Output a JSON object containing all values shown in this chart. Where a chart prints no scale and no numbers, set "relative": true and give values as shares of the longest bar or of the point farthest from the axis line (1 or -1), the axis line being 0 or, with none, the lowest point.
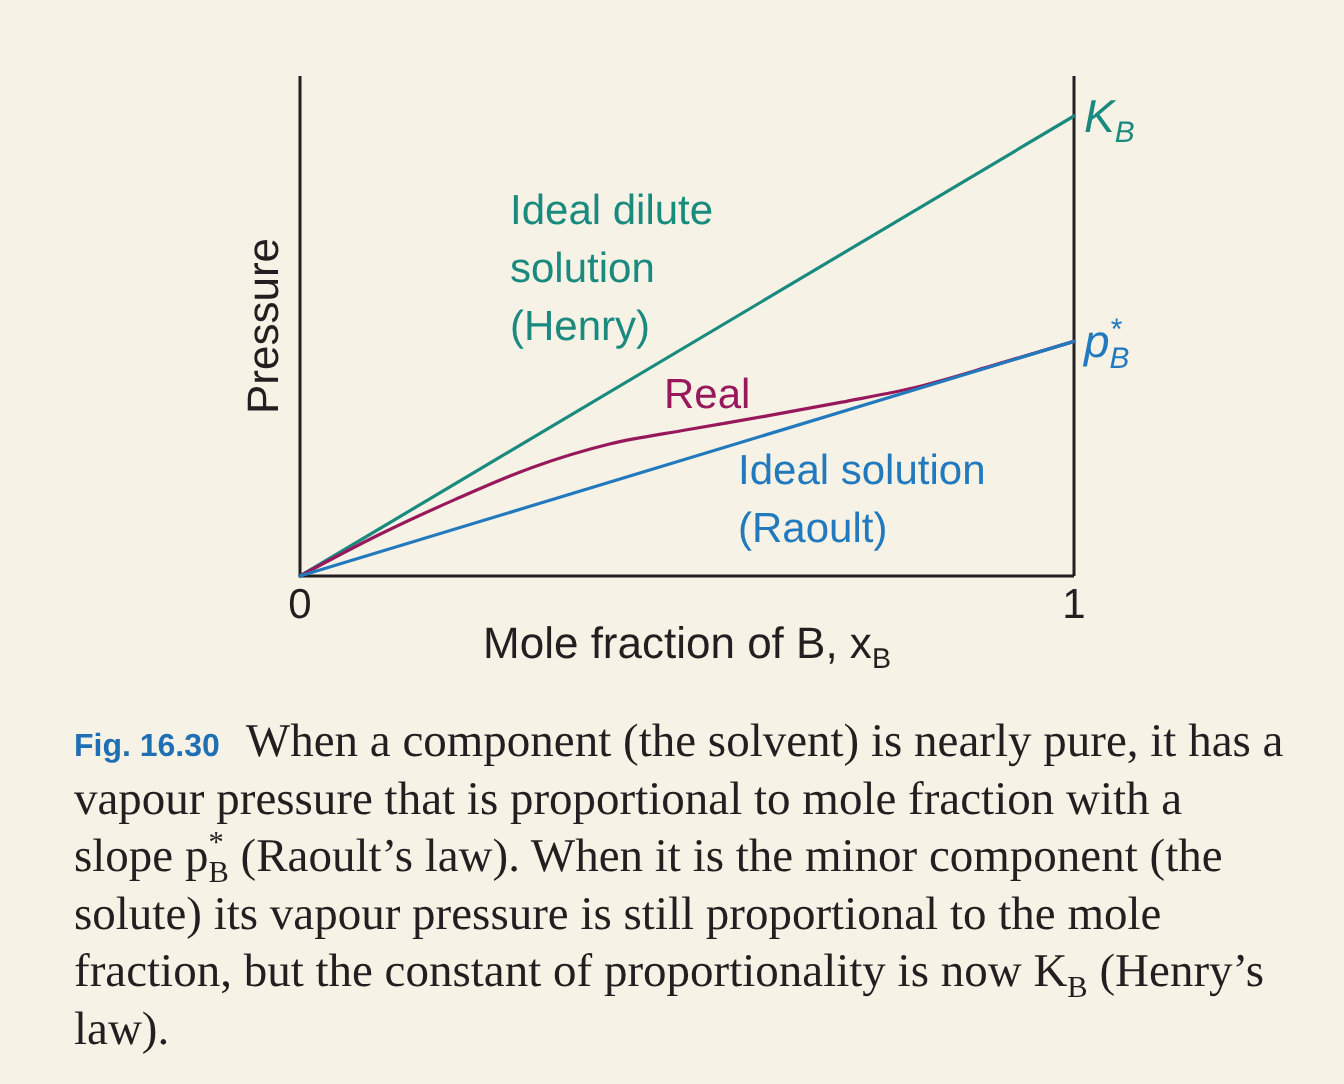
{
  "chart_data": {
    "type": "line",
    "relative": true,
    "xlabel": "Mole fraction of B, x$_{B}$",
    "ylabel": "Pressure",
    "xlim": [
      0,
      1
    ],
    "xticks": [
      0,
      1
    ],
    "series": [
      {
        "name": "Ideal dilute solution (Henry)",
        "color": "#1a8a7f",
        "x": [
          0,
          1
        ],
        "values": [
          0,
          1
        ]
      },
      {
        "name": "Real",
        "color": "#98185c",
        "x": [
          0,
          0.1,
          0.2,
          0.3,
          0.4,
          0.5,
          0.6,
          0.7,
          0.8,
          0.9,
          1
        ],
        "values": [
          0,
          0.088,
          0.166,
          0.236,
          0.287,
          0.318,
          0.347,
          0.378,
          0.412,
          0.46,
          0.51
        ]
      },
      {
        "name": "Ideal solution (Raoult)",
        "color": "#2279bd",
        "x": [
          0,
          1
        ],
        "values": [
          0,
          0.51
        ]
      }
    ],
    "annotations": [
      {
        "text": "K$_{B}$",
        "x": 1,
        "y": 1
      },
      {
        "text": "p$^{*}$$_{B}$",
        "x": 1,
        "y": 0.51
      },
      "Fig. 16.30 When a component (the solvent) is nearly pure, it has a vapour pressure that is proportional to mole fraction with a slope p$^{*}$$_{B}$ (Raoult’s law). When it is the minor component (the solute) its vapour pressure is still proportional to the mole fraction, but the constant of proportionality is now K$_{B}$ (Henry’s law)."
    ]
  }
}
